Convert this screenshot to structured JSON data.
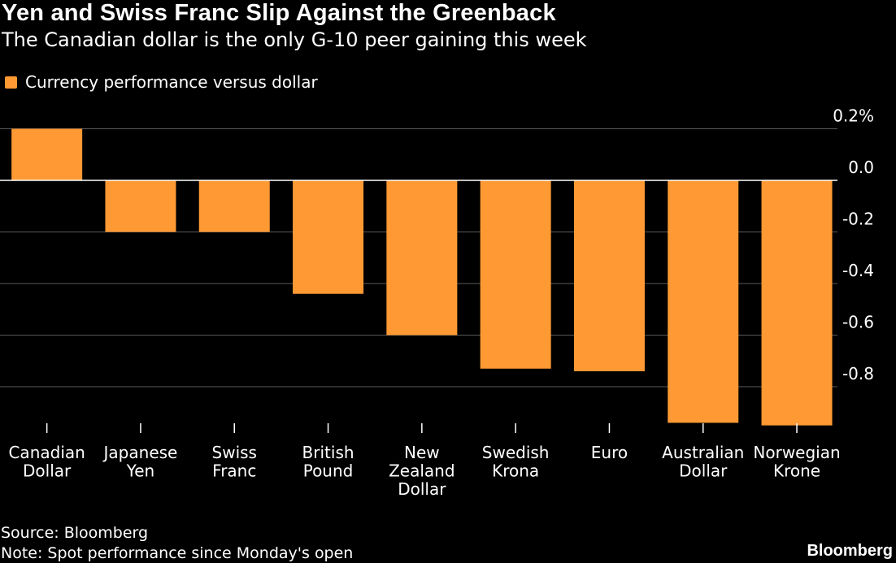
{
  "header": {
    "title": "Yen and Swiss Franc Slip Against the Greenback",
    "subtitle": "The Canadian dollar is the only G-10 peer gaining this week"
  },
  "colors": {
    "background": "#000000",
    "bar": "#ff9933",
    "text": "#ffffff",
    "gridline": "#5a5a5a",
    "zeroline": "#ffffff"
  },
  "chart_data": {
    "type": "bar",
    "title": "Yen and Swiss Franc Slip Against the Greenback",
    "subtitle": "The Canadian dollar is the only G-10 peer gaining this week",
    "categories": [
      [
        "Canadian",
        "Dollar"
      ],
      [
        "Japanese",
        "Yen"
      ],
      [
        "Swiss",
        "Franc"
      ],
      [
        "British",
        "Pound"
      ],
      [
        "New",
        "Zealand",
        "Dollar"
      ],
      [
        "Swedish",
        "Krona"
      ],
      [
        "Euro"
      ],
      [
        "Australian",
        "Dollar"
      ],
      [
        "Norwegian",
        "Krone"
      ]
    ],
    "series": [
      {
        "name": "Currency performance versus dollar",
        "values": [
          0.2,
          -0.2,
          -0.2,
          -0.44,
          -0.6,
          -0.73,
          -0.74,
          -0.94,
          -0.95
        ]
      }
    ],
    "ylim": [
      -0.95,
      0.2
    ],
    "yticks": [
      0.2,
      0.0,
      -0.2,
      -0.4,
      -0.6,
      -0.8
    ],
    "ytick_labels": [
      "0.2%",
      "0.0",
      "-0.2",
      "-0.4",
      "-0.6",
      "-0.8"
    ],
    "grid": true,
    "legend_position": "top-left"
  },
  "footer": {
    "source": "Source: Bloomberg",
    "note": "Note: Spot performance since Monday's open",
    "brand": "Bloomberg"
  }
}
